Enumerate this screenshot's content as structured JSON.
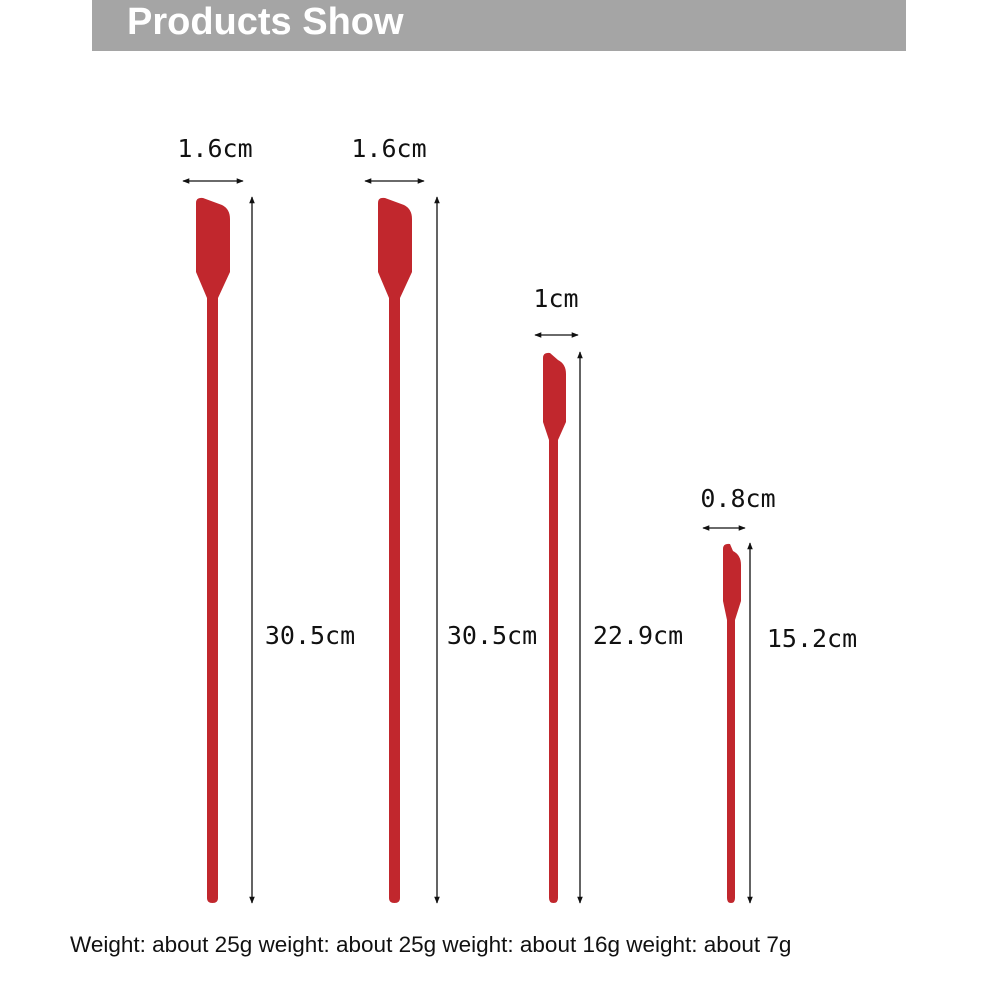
{
  "header": {
    "title": "Products Show"
  },
  "products": [
    {
      "width_label": "1.6cm",
      "length_label": "30.5cm"
    },
    {
      "width_label": "1.6cm",
      "length_label": "30.5cm"
    },
    {
      "width_label": "1cm",
      "length_label": "22.9cm"
    },
    {
      "width_label": "0.8cm",
      "length_label": "15.2cm"
    }
  ],
  "footer": {
    "weights": "Weight: about 25g weight: about 25g weight: about 16g weight: about 7g"
  }
}
